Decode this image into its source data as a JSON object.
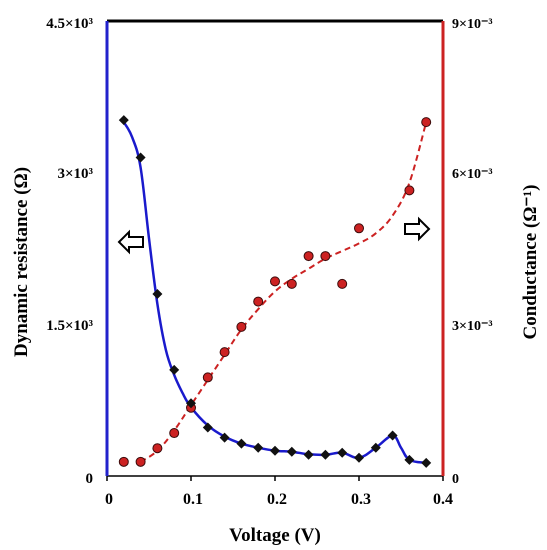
{
  "chart_data": {
    "type": "scatter",
    "title": "",
    "xlabel": "Voltage  (V)",
    "ylabel_left": "Dynamic resistance (Ω)",
    "ylabel_right": "Conductance (Ω⁻¹)",
    "xlim": [
      0,
      0.4
    ],
    "ylim_left": [
      0,
      4500
    ],
    "ylim_right": [
      0,
      0.009
    ],
    "x_ticks": [
      "0",
      "0.1",
      "0.2",
      "0.3",
      "0.4"
    ],
    "y_left_ticks": [
      "0",
      "1.5×10³",
      "3×10³",
      "4.5×10³"
    ],
    "y_right_ticks": [
      "0",
      "3×10⁻³",
      "6×10⁻³",
      "9×10⁻³"
    ],
    "grid": false,
    "colors": {
      "resistance": "#1a1acc",
      "conductance": "#cc2222",
      "marker": "#111111",
      "axis_left": "#2222cc",
      "axis_right": "#cc2222"
    },
    "series": [
      {
        "axis": "left",
        "marker": "diamond",
        "line": "solid",
        "x": [
          0.02,
          0.04,
          0.06,
          0.08,
          0.1,
          0.12,
          0.14,
          0.16,
          0.18,
          0.2,
          0.22,
          0.24,
          0.26,
          0.28,
          0.3,
          0.32,
          0.34,
          0.36,
          0.38
        ],
        "y": [
          3520,
          3150,
          1800,
          1050,
          720,
          480,
          380,
          320,
          280,
          250,
          240,
          210,
          210,
          230,
          180,
          280,
          400,
          160,
          130
        ]
      },
      {
        "axis": "right",
        "marker": "circle",
        "line": "dashed",
        "x": [
          0.02,
          0.04,
          0.06,
          0.08,
          0.1,
          0.12,
          0.14,
          0.16,
          0.18,
          0.2,
          0.22,
          0.24,
          0.26,
          0.28,
          0.3,
          0.36,
          0.38
        ],
        "y": [
          0.00028,
          0.00028,
          0.00055,
          0.00085,
          0.00135,
          0.00195,
          0.00245,
          0.00295,
          0.00345,
          0.00385,
          0.0038,
          0.00435,
          0.00435,
          0.0038,
          0.0049,
          0.00565,
          0.007
        ]
      }
    ],
    "fits": [
      {
        "axis": "left",
        "x": [
          0.02,
          0.03,
          0.04,
          0.05,
          0.06,
          0.07,
          0.08,
          0.09,
          0.1,
          0.12,
          0.14,
          0.16,
          0.18,
          0.2,
          0.22,
          0.24,
          0.26,
          0.28,
          0.3,
          0.32,
          0.34,
          0.35,
          0.36,
          0.38
        ],
        "y": [
          3500,
          3350,
          3050,
          2350,
          1700,
          1250,
          1000,
          820,
          680,
          500,
          390,
          320,
          280,
          250,
          240,
          215,
          210,
          230,
          180,
          280,
          400,
          280,
          160,
          130
        ]
      },
      {
        "axis": "right",
        "x": [
          0.04,
          0.06,
          0.08,
          0.1,
          0.12,
          0.14,
          0.16,
          0.18,
          0.2,
          0.22,
          0.24,
          0.26,
          0.28,
          0.3,
          0.32,
          0.34,
          0.36,
          0.38
        ],
        "y": [
          0.00028,
          0.0005,
          0.0009,
          0.0014,
          0.0019,
          0.0024,
          0.0029,
          0.0033,
          0.00365,
          0.0039,
          0.0041,
          0.0043,
          0.00445,
          0.0046,
          0.0048,
          0.00515,
          0.0058,
          0.007
        ]
      }
    ],
    "annotations": [
      {
        "type": "arrow",
        "direction": "left",
        "meaning": "left axis"
      },
      {
        "type": "arrow",
        "direction": "right",
        "meaning": "right axis"
      }
    ]
  }
}
